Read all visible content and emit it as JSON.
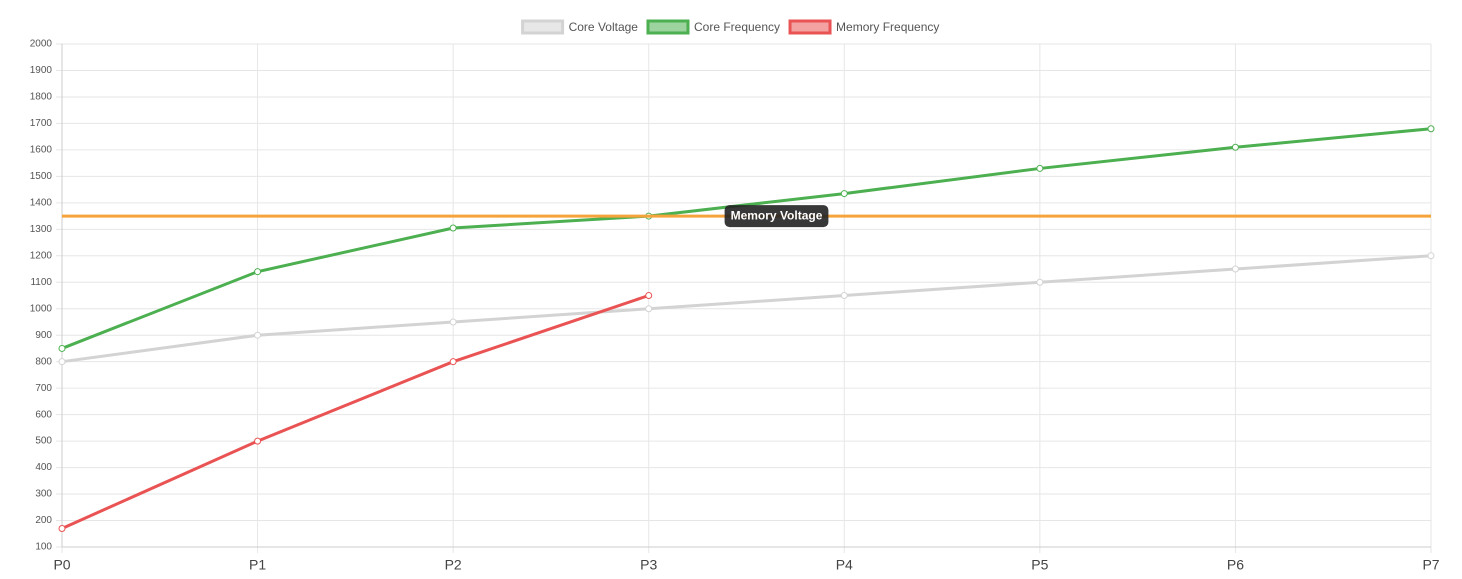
{
  "chart_data": {
    "type": "line",
    "categories": [
      "P0",
      "P1",
      "P2",
      "P3",
      "P4",
      "P5",
      "P6",
      "P7"
    ],
    "series": [
      {
        "name": "Core Voltage",
        "color": "#d3d3d3",
        "values": [
          800,
          900,
          950,
          1000,
          1050,
          1100,
          1150,
          1200
        ]
      },
      {
        "name": "Core Frequency",
        "color": "#4caf50",
        "values": [
          850,
          1140,
          1305,
          1350,
          1435,
          1530,
          1610,
          1680
        ]
      },
      {
        "name": "Memory Frequency",
        "color": "#ea5353",
        "values": [
          170,
          500,
          800,
          1050,
          null,
          null,
          null,
          null
        ]
      }
    ],
    "ylim": [
      100,
      2000
    ],
    "yticks": [
      100,
      200,
      300,
      400,
      500,
      600,
      700,
      800,
      900,
      1000,
      1100,
      1200,
      1300,
      1400,
      1500,
      1600,
      1700,
      1800,
      1900,
      2000
    ],
    "grid": true,
    "legend": "top",
    "annotations": [
      {
        "value": 1350,
        "label": "Memory Voltage",
        "color": "#f5a33b"
      }
    ]
  }
}
